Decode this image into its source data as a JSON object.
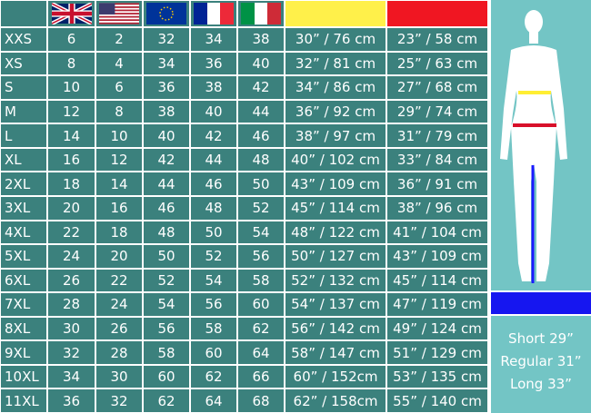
{
  "table": {
    "rows": [
      [
        "XXS",
        6,
        2,
        32,
        34,
        38,
        "30” / 76 cm",
        "23” / 58 cm"
      ],
      [
        "XS",
        8,
        4,
        34,
        36,
        40,
        "32” / 81 cm",
        "25” / 63 cm"
      ],
      [
        "S",
        10,
        6,
        36,
        38,
        42,
        "34” / 86 cm",
        "27” / 68 cm"
      ],
      [
        "M",
        12,
        8,
        38,
        40,
        44,
        "36” / 92 cm",
        "29” / 74 cm"
      ],
      [
        "L",
        14,
        10,
        40,
        42,
        46,
        "38” / 97 cm",
        "31” / 79 cm"
      ],
      [
        "XL",
        16,
        12,
        42,
        44,
        48,
        "40” / 102 cm",
        "33” / 84 cm"
      ],
      [
        "2XL",
        18,
        14,
        44,
        46,
        50,
        "43” / 109 cm",
        "36” / 91 cm"
      ],
      [
        "3XL",
        20,
        16,
        46,
        48,
        52,
        "45” / 114 cm",
        "38” / 96 cm"
      ],
      [
        "4XL",
        22,
        18,
        48,
        50,
        54,
        "48” / 122 cm",
        "41” / 104 cm"
      ],
      [
        "5XL",
        24,
        20,
        50,
        52,
        56,
        "50” / 127 cm",
        "43” / 109 cm"
      ],
      [
        "6XL",
        26,
        22,
        52,
        54,
        58,
        "52” / 132 cm",
        "45” / 114 cm"
      ],
      [
        "7XL",
        28,
        24,
        54,
        56,
        60,
        "54” / 137 cm",
        "47” / 119 cm"
      ],
      [
        "8XL",
        30,
        26,
        56,
        58,
        62,
        "56” / 142 cm",
        "49” / 124 cm"
      ],
      [
        "9XL",
        32,
        28,
        58,
        60,
        64,
        "58” / 147 cm",
        "51” / 129 cm"
      ],
      [
        "10XL",
        34,
        30,
        60,
        62,
        66,
        "60” / 152cm",
        "53” / 135 cm"
      ],
      [
        "11XL",
        36,
        32,
        62,
        64,
        68,
        "62” / 158cm",
        "55” / 140 cm"
      ]
    ]
  },
  "legend": {
    "lines": [
      "Short 29”",
      "Regular 31”",
      "Long 33”"
    ]
  }
}
